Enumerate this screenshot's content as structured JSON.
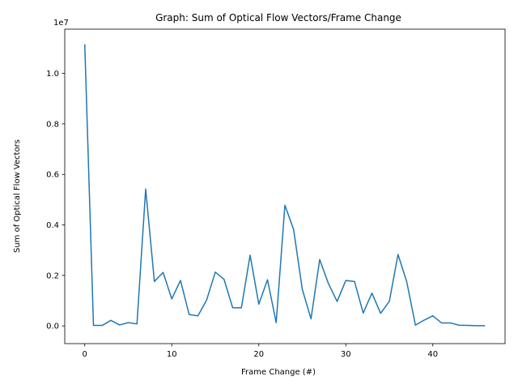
{
  "chart_data": {
    "type": "line",
    "title": "Graph: Sum of Optical Flow Vectors/Frame Change",
    "xlabel": "Frame Change (#)",
    "ylabel": "Sum of Optical Flow Vectors",
    "y_offset_label": "1e7",
    "xlim": [
      -2.3,
      48.3
    ],
    "ylim": [
      -0.07,
      1.175
    ],
    "x_ticks": [
      0,
      10,
      20,
      30,
      40
    ],
    "x_tick_labels": [
      "0",
      "10",
      "20",
      "30",
      "40"
    ],
    "y_ticks": [
      0.0,
      0.2,
      0.4,
      0.6,
      0.8,
      1.0
    ],
    "y_tick_labels": [
      "0.0",
      "0.2",
      "0.4",
      "0.6",
      "0.8",
      "1.0"
    ],
    "grid": false,
    "series": [
      {
        "color": "#1f77b4",
        "x": [
          0,
          1,
          2,
          3,
          4,
          5,
          6,
          7,
          8,
          9,
          10,
          11,
          12,
          13,
          14,
          15,
          16,
          17,
          18,
          19,
          20,
          21,
          22,
          23,
          24,
          25,
          26,
          27,
          28,
          29,
          30,
          31,
          32,
          33,
          34,
          35,
          36,
          37,
          38,
          39,
          40,
          41,
          42,
          43,
          44,
          45,
          46
        ],
        "values": [
          1.115,
          0.002,
          0.002,
          0.022,
          0.004,
          0.013,
          0.008,
          0.542,
          0.176,
          0.212,
          0.107,
          0.18,
          0.045,
          0.04,
          0.102,
          0.213,
          0.185,
          0.072,
          0.072,
          0.28,
          0.086,
          0.183,
          0.013,
          0.478,
          0.382,
          0.145,
          0.028,
          0.263,
          0.168,
          0.097,
          0.18,
          0.176,
          0.051,
          0.13,
          0.05,
          0.097,
          0.283,
          0.175,
          0.003,
          0.023,
          0.04,
          0.012,
          0.012,
          0.003,
          0.002,
          0.001,
          0.001
        ]
      }
    ]
  }
}
